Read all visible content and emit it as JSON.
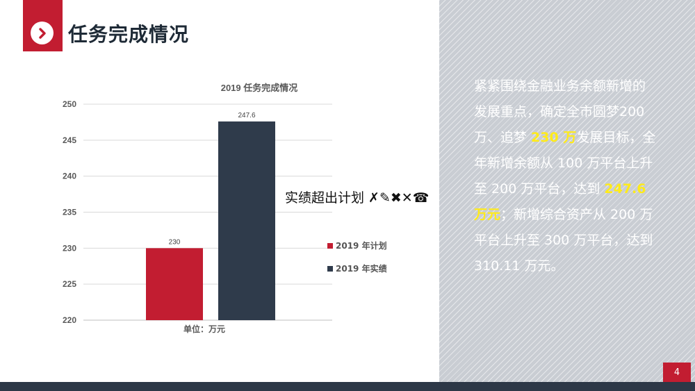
{
  "header": {
    "title": "任务完成情况",
    "icon": "chevron-right-icon",
    "accent": "#c21d31"
  },
  "annotation": "实绩超出计划 ✗✎✖✕☎",
  "side_text": {
    "p1": "紧紧围绕金融业务余额新增的发展重点，确定全市圆梦200 万、追梦 ",
    "h1": "230 万",
    "p2": "发展目标，全年新增余额从 100 万平台上升至 200 万平台，达到 ",
    "h2": "247.6 万元",
    "p3": "；新增综合资产从 200 万平台上升至 300 万平台，达到 310.11 万元。"
  },
  "page_number": "4",
  "chart_data": {
    "type": "bar",
    "title": "2019 任务完成情况",
    "xlabel": "单位：万元",
    "ylim": [
      220,
      250
    ],
    "yticks": [
      250,
      245,
      240,
      235,
      230,
      225,
      220
    ],
    "grid": true,
    "legend_position": "right",
    "series": [
      {
        "name": "2019 年计划",
        "value": 230,
        "label": "230",
        "color": "#c21d31"
      },
      {
        "name": "2019 年实绩",
        "value": 247.6,
        "label": "247.6",
        "color": "#2f3b4b"
      }
    ]
  }
}
